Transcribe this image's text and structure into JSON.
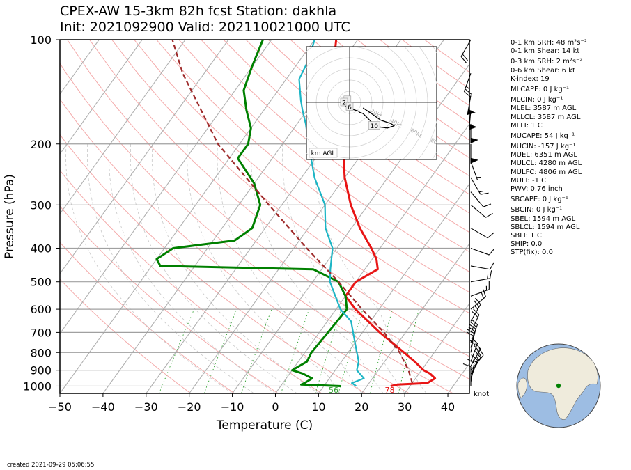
{
  "title": {
    "line1": "CPEX-AW 15-3km  82h fcst  Station: dakhla",
    "line2": "Init: 2021092900  Valid: 202110021000 UTC"
  },
  "chart_data": {
    "type": "line",
    "diagram": "skew-T log-P",
    "xlabel": "Temperature (C)",
    "ylabel": "Pressure (hPa)",
    "xlim": [
      -50,
      45
    ],
    "ylim": [
      1050,
      100
    ],
    "y_scale": "log",
    "x_ticks": [
      -50,
      -40,
      -30,
      -20,
      -10,
      0,
      10,
      20,
      30,
      40
    ],
    "y_ticks": [
      1000,
      900,
      800,
      700,
      600,
      500,
      400,
      300,
      200,
      100
    ],
    "grid": true,
    "colors": {
      "temperature": "#e81515",
      "dewpoint": "#008000",
      "wetbulb": "#1cb5c5",
      "parcel": "#9e2a2a",
      "isotherm": "#b0b0b0",
      "dry_adiabat": "#f4aaaa",
      "mixing_ratio": "#2ca02c"
    },
    "series": [
      {
        "role": "temperature",
        "points": [
          [
            1000,
            25.5
          ],
          [
            990,
            26.8
          ],
          [
            980,
            33.5
          ],
          [
            950,
            34.5
          ],
          [
            920,
            32.5
          ],
          [
            900,
            30.5
          ],
          [
            850,
            27
          ],
          [
            800,
            23
          ],
          [
            700,
            14
          ],
          [
            600,
            4.5
          ],
          [
            550,
            0
          ],
          [
            500,
            0
          ],
          [
            460,
            3
          ],
          [
            430,
            1
          ],
          [
            400,
            -2
          ],
          [
            350,
            -8
          ],
          [
            300,
            -14
          ],
          [
            250,
            -20
          ],
          [
            200,
            -26
          ],
          [
            175,
            -30
          ],
          [
            160,
            -33
          ],
          [
            150,
            -35
          ],
          [
            130,
            -39
          ],
          [
            115,
            -42
          ],
          [
            100,
            -45
          ]
        ]
      },
      {
        "role": "dewpoint",
        "points": [
          [
            1000,
            14
          ],
          [
            990,
            4.5
          ],
          [
            980,
            5
          ],
          [
            950,
            6
          ],
          [
            920,
            3
          ],
          [
            900,
            0
          ],
          [
            850,
            2
          ],
          [
            800,
            1.5
          ],
          [
            700,
            2
          ],
          [
            600,
            2.5
          ],
          [
            550,
            0
          ],
          [
            500,
            -4
          ],
          [
            460,
            -12
          ],
          [
            450,
            -48
          ],
          [
            430,
            -50
          ],
          [
            400,
            -48
          ],
          [
            380,
            -35
          ],
          [
            350,
            -33
          ],
          [
            300,
            -35
          ],
          [
            260,
            -40
          ],
          [
            220,
            -48
          ],
          [
            200,
            -48
          ],
          [
            180,
            -50
          ],
          [
            160,
            -54
          ],
          [
            140,
            -58
          ],
          [
            120,
            -60
          ],
          [
            100,
            -62
          ]
        ]
      },
      {
        "role": "wetbulb",
        "points": [
          [
            1000,
            17.5
          ],
          [
            980,
            16
          ],
          [
            950,
            18
          ],
          [
            900,
            15
          ],
          [
            850,
            14
          ],
          [
            750,
            10
          ],
          [
            650,
            5.5
          ],
          [
            600,
            1
          ],
          [
            500,
            -6
          ],
          [
            460,
            -8
          ],
          [
            400,
            -11
          ],
          [
            350,
            -16
          ],
          [
            300,
            -20
          ],
          [
            250,
            -27
          ],
          [
            200,
            -34
          ],
          [
            175,
            -38
          ],
          [
            160,
            -41
          ],
          [
            150,
            -43
          ],
          [
            130,
            -47
          ],
          [
            115,
            -48
          ],
          [
            100,
            -50
          ]
        ]
      },
      {
        "role": "parcel",
        "style": "dashed",
        "points": [
          [
            980,
            30
          ],
          [
            900,
            27
          ],
          [
            800,
            22
          ],
          [
            700,
            15
          ],
          [
            600,
            6
          ],
          [
            500,
            -4
          ],
          [
            400,
            -17
          ],
          [
            300,
            -33
          ],
          [
            200,
            -55
          ],
          [
            125,
            -75
          ],
          [
            100,
            -83
          ]
        ]
      }
    ],
    "surface_labels": [
      {
        "text": "56",
        "color": "#2ca02c",
        "temp_c": 13.5
      },
      {
        "text": "78",
        "color": "#e81515",
        "temp_c": 26.5
      }
    ],
    "wind_unit_label": "knot",
    "wind_barbs": [
      {
        "p": 1000,
        "dir": 0,
        "spd": 10
      },
      {
        "p": 975,
        "dir": 10,
        "spd": 10
      },
      {
        "p": 950,
        "dir": 20,
        "spd": 15
      },
      {
        "p": 925,
        "dir": 30,
        "spd": 15
      },
      {
        "p": 900,
        "dir": 40,
        "spd": 20
      },
      {
        "p": 875,
        "dir": 30,
        "spd": 20
      },
      {
        "p": 850,
        "dir": 20,
        "spd": 20
      },
      {
        "p": 800,
        "dir": 10,
        "spd": 20
      },
      {
        "p": 775,
        "dir": 15,
        "spd": 20
      },
      {
        "p": 750,
        "dir": 20,
        "spd": 20
      },
      {
        "p": 700,
        "dir": 25,
        "spd": 20
      },
      {
        "p": 650,
        "dir": 30,
        "spd": 25
      },
      {
        "p": 600,
        "dir": 50,
        "spd": 20
      },
      {
        "p": 550,
        "dir": 70,
        "spd": 15
      },
      {
        "p": 500,
        "dir": 80,
        "spd": 15
      },
      {
        "p": 450,
        "dir": 100,
        "spd": 10
      },
      {
        "p": 400,
        "dir": 110,
        "spd": 10
      },
      {
        "p": 350,
        "dir": 120,
        "spd": 10
      },
      {
        "p": 300,
        "dir": 130,
        "spd": 10
      },
      {
        "p": 275,
        "dir": 140,
        "spd": 10
      },
      {
        "p": 250,
        "dir": 150,
        "spd": 15
      },
      {
        "p": 225,
        "dir": 160,
        "spd": 15
      },
      {
        "p": 200,
        "dir": 180,
        "spd": 50
      },
      {
        "p": 175,
        "dir": 180,
        "spd": 50
      },
      {
        "p": 160,
        "dir": 185,
        "spd": 50
      },
      {
        "p": 145,
        "dir": 190,
        "spd": 50
      },
      {
        "p": 125,
        "dir": 200,
        "spd": 25
      },
      {
        "p": 100,
        "dir": 210,
        "spd": 20
      }
    ],
    "hodograph": {
      "label": "km AGL",
      "ring_labels": [
        "20kt",
        "40kt",
        "60kt",
        "80kt"
      ],
      "height_labels": [
        {
          "text": "1",
          "u": -2,
          "v": 2
        },
        {
          "text": "2",
          "u": -5,
          "v": 0
        },
        {
          "text": "6",
          "u": 0,
          "v": -4
        },
        {
          "text": "10",
          "u": 22,
          "v": -21
        }
      ],
      "trace": [
        [
          -4,
          0
        ],
        [
          -4,
          -3
        ],
        [
          -1,
          -5
        ],
        [
          0,
          -3
        ],
        [
          -2,
          2
        ],
        [
          -2,
          0
        ],
        [
          2,
          -6
        ],
        [
          8,
          -8
        ],
        [
          9,
          -9
        ],
        [
          12,
          -10
        ],
        [
          16,
          -14
        ],
        [
          20,
          -18
        ],
        [
          26,
          -22
        ],
        [
          34,
          -23
        ],
        [
          40,
          -21
        ],
        [
          37,
          -19
        ],
        [
          28,
          -16
        ],
        [
          18,
          -9
        ],
        [
          12,
          -5
        ]
      ]
    }
  },
  "indices": [
    "0-1 km SRH: 48 m²s⁻²",
    "0-1 km Shear: 14 kt",
    "0-3 km SRH: 2 m²s⁻²",
    "0-6 km Shear: 6 kt",
    "K-index: 19",
    "MLCAPE: 0 J kg⁻¹",
    "MLCIN: 0 J kg⁻¹",
    "MLEL: 3587 m AGL",
    "MLLCL: 3587 m AGL",
    "MLLI: 1 C",
    "MUCAPE: 54 J kg⁻¹",
    "MUCIN: -157 J kg⁻¹",
    "MUEL: 6351 m AGL",
    "MULCL: 4280 m AGL",
    "MULFC: 4806 m AGL",
    "MULI: -1 C",
    "PWV: 0.76 inch",
    "SBCAPE: 0 J kg⁻¹",
    "SBCIN: 0 J kg⁻¹",
    "SBEL: 1594 m AGL",
    "SBLCL: 1594 m AGL",
    "SBLI: 1 C",
    "SHIP: 0.0",
    "STP(fix): 0.0"
  ],
  "created": "created 2021-09-29 05:06:55",
  "globe": {
    "ocean_color": "#9dbde3",
    "land_color": "#efebdc",
    "marker_color": "#008000"
  }
}
